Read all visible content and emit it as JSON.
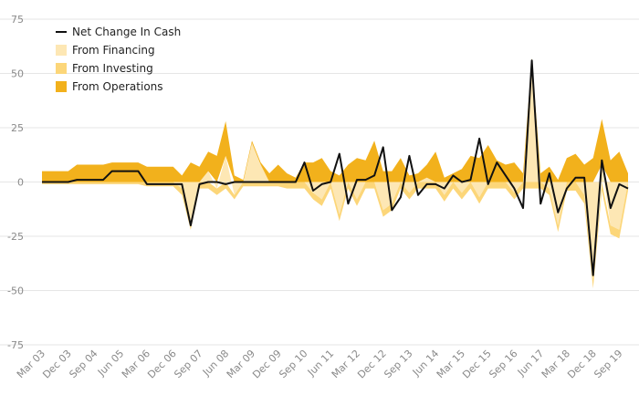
{
  "chart_data": {
    "type": "area",
    "title": "",
    "xlabel": "",
    "ylabel": "",
    "ylim": [
      -75,
      75
    ],
    "yticks": [
      75,
      50,
      25,
      0,
      -25,
      -50,
      -75
    ],
    "y_tick_labels": [
      "75",
      "50",
      "25",
      "0",
      "-25",
      "-50",
      "-75"
    ],
    "x_tick_labels": [
      "Mar 03",
      "Dec 03",
      "Sep 04",
      "Jun 05",
      "Mar 06",
      "Dec 06",
      "Sep 07",
      "Jun 08",
      "Mar 09",
      "Dec 09",
      "Sep 10",
      "Jun 11",
      "Mar 12",
      "Dec 12",
      "Sep 13",
      "Jun 14",
      "Mar 15",
      "Dec 15",
      "Sep 16",
      "Jun 17",
      "Mar 18",
      "Dec 18",
      "Sep 19"
    ],
    "x": [
      "Mar 03",
      "Jun 03",
      "Sep 03",
      "Dec 03",
      "Mar 04",
      "Jun 04",
      "Sep 04",
      "Dec 04",
      "Mar 05",
      "Jun 05",
      "Sep 05",
      "Dec 05",
      "Mar 06",
      "Jun 06",
      "Sep 06",
      "Dec 06",
      "Mar 07",
      "Jun 07",
      "Sep 07",
      "Dec 07",
      "Mar 08",
      "Jun 08",
      "Sep 08",
      "Dec 08",
      "Mar 09",
      "Jun 09",
      "Sep 09",
      "Dec 09",
      "Mar 10",
      "Jun 10",
      "Sep 10",
      "Dec 10",
      "Mar 11",
      "Jun 11",
      "Sep 11",
      "Dec 11",
      "Mar 12",
      "Jun 12",
      "Sep 12",
      "Dec 12",
      "Mar 13",
      "Jun 13",
      "Sep 13",
      "Dec 13",
      "Mar 14",
      "Jun 14",
      "Sep 14",
      "Dec 14",
      "Mar 15",
      "Jun 15",
      "Sep 15",
      "Dec 15",
      "Mar 16",
      "Jun 16",
      "Sep 16",
      "Dec 16",
      "Mar 17",
      "Jun 17",
      "Sep 17",
      "Dec 17",
      "Mar 18",
      "Jun 18",
      "Sep 18",
      "Dec 18",
      "Mar 19",
      "Jun 19",
      "Sep 19",
      "Dec 19"
    ],
    "series": [
      {
        "name": "From Financing",
        "kind": "area",
        "color": "#fde7b4",
        "values": [
          0,
          0,
          0,
          0,
          0,
          0,
          0,
          0,
          0,
          0,
          0,
          0,
          0,
          0,
          0,
          0,
          -3,
          -20,
          0,
          5,
          -3,
          12,
          -6,
          0,
          18,
          8,
          0,
          0,
          0,
          0,
          0,
          -5,
          -8,
          0,
          -15,
          0,
          -8,
          0,
          0,
          -13,
          -10,
          0,
          -5,
          0,
          2,
          0,
          -6,
          0,
          -5,
          0,
          -7,
          0,
          0,
          0,
          -5,
          0,
          54,
          0,
          -3,
          -20,
          0,
          0,
          -6,
          -45,
          8,
          -20,
          -22,
          0
        ]
      },
      {
        "name": "From Investing",
        "kind": "area",
        "color": "#fcd679",
        "values": [
          -1,
          -1,
          -1,
          -1,
          -1,
          -1,
          -1,
          -1,
          -1,
          -1,
          -1,
          -1,
          -2,
          -2,
          -2,
          -2,
          -3,
          -2,
          -3,
          -3,
          -3,
          -3,
          -2,
          -2,
          -2,
          -2,
          -2,
          -2,
          -3,
          -3,
          -3,
          -3,
          -3,
          -3,
          -3,
          -3,
          -3,
          -3,
          -3,
          -3,
          -3,
          -3,
          -3,
          -3,
          -3,
          -3,
          -3,
          -3,
          -3,
          -3,
          -3,
          -3,
          -3,
          -3,
          -3,
          -3,
          -3,
          -3,
          -3,
          -3,
          -4,
          -4,
          -4,
          -4,
          -4,
          -4,
          -4,
          -4
        ]
      },
      {
        "name": "From Operations",
        "kind": "area",
        "color": "#f2b11c",
        "values": [
          5,
          5,
          5,
          5,
          8,
          8,
          8,
          8,
          9,
          9,
          9,
          9,
          7,
          7,
          7,
          7,
          3,
          9,
          7,
          9,
          12,
          16,
          3,
          1,
          1,
          1,
          4,
          8,
          4,
          2,
          9,
          9,
          11,
          5,
          3,
          8,
          11,
          10,
          19,
          5,
          5,
          11,
          3,
          4,
          6,
          14,
          2,
          4,
          6,
          12,
          11,
          17,
          10,
          8,
          9,
          4,
          3,
          4,
          7,
          1,
          11,
          13,
          8,
          11,
          21,
          10,
          14,
          4
        ]
      },
      {
        "name": "Net Change In Cash",
        "kind": "line",
        "color": "#111111",
        "values": [
          0,
          0,
          0,
          0,
          1,
          1,
          1,
          1,
          5,
          5,
          5,
          5,
          -1,
          -1,
          -1,
          -1,
          -1,
          -20,
          -1,
          0,
          0,
          -1,
          0,
          0,
          0,
          0,
          0,
          0,
          0,
          0,
          9,
          -4,
          -1,
          0,
          13,
          -10,
          1,
          1,
          3,
          16,
          -13,
          -7,
          12,
          -6,
          -1,
          -1,
          -3,
          3,
          0,
          1,
          20,
          -1,
          9,
          3,
          -3,
          -12,
          56,
          -10,
          4,
          -14,
          -3,
          2,
          2,
          -43,
          10,
          -12,
          -1,
          -3
        ]
      }
    ],
    "legend": {
      "placement": "top-left"
    },
    "grid": true
  }
}
